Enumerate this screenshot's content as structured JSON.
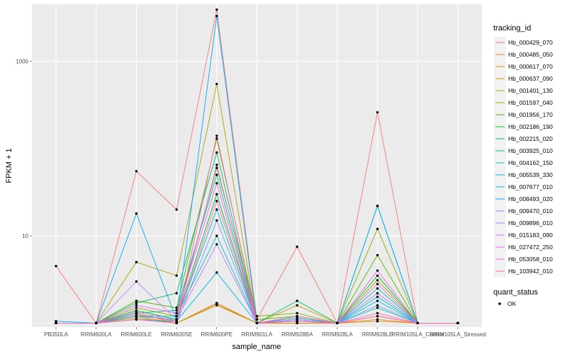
{
  "chart_data": {
    "type": "line",
    "title": "",
    "xlabel": "sample_name",
    "ylabel": "FPKM + 1",
    "y_scale": "log10",
    "ylim": [
      0.9,
      4500
    ],
    "grid": true,
    "categories": [
      "PB350LA",
      "RRIM600LA",
      "RRIM600LE",
      "RRIM600SE",
      "RRIM600PE",
      "RRIM901LA",
      "RRIM928BA",
      "RRIM928LA",
      "RRIM928LE",
      "RRIM105LA_Control",
      "RRIM105LA_Stressed"
    ],
    "y_ticks": [
      10,
      1000
    ],
    "y_tick_labels": [
      "10",
      "1000"
    ],
    "legend_title": "tracking_id",
    "legend_position": "right",
    "status_legend": {
      "title": "quant_status",
      "label": "OK",
      "color": "#000000"
    },
    "series": [
      {
        "name": "Hb_000429_070",
        "color": "#F8766D",
        "values": [
          4.5,
          1,
          55,
          20,
          3900,
          1.1,
          7.5,
          1,
          260,
          1,
          1
        ]
      },
      {
        "name": "Hb_000485_050",
        "color": "#EB8335",
        "values": [
          1,
          1,
          1.2,
          1,
          1.7,
          1,
          1,
          1,
          1.05,
          1,
          1
        ]
      },
      {
        "name": "Hb_000617_070",
        "color": "#DA8F00",
        "values": [
          1,
          1,
          1.15,
          1,
          1.6,
          1,
          1,
          1,
          1.1,
          1,
          1
        ]
      },
      {
        "name": "Hb_000637_090",
        "color": "#C49A00",
        "values": [
          1,
          1,
          1.3,
          1,
          1.65,
          1,
          1.6,
          1,
          1.2,
          1,
          1
        ]
      },
      {
        "name": "Hb_001401_130",
        "color": "#A9A400",
        "values": [
          1,
          1,
          5,
          3.5,
          550,
          1,
          1.2,
          1,
          3.1,
          1,
          1
        ]
      },
      {
        "name": "Hb_001597_040",
        "color": "#86AC00",
        "values": [
          1,
          1,
          1.5,
          1.2,
          60,
          1.2,
          1.3,
          1,
          12,
          1,
          1
        ]
      },
      {
        "name": "Hb_001956_170",
        "color": "#53B400",
        "values": [
          1,
          1,
          1.8,
          1.5,
          130,
          1.1,
          1.2,
          1,
          6,
          1,
          1
        ]
      },
      {
        "name": "Hb_002186_190",
        "color": "#00B925",
        "values": [
          1,
          1,
          1.4,
          1.1,
          30,
          1,
          1.1,
          1,
          3.5,
          1,
          1
        ]
      },
      {
        "name": "Hb_002215_020",
        "color": "#00BD64",
        "values": [
          1,
          1,
          1.7,
          2.2,
          90,
          1,
          1.8,
          1,
          22,
          1,
          1
        ]
      },
      {
        "name": "Hb_003925_010",
        "color": "#00C08B",
        "values": [
          1,
          1,
          1.3,
          1.4,
          50,
          1,
          1.15,
          1,
          2.5,
          1,
          1
        ]
      },
      {
        "name": "Hb_004162_150",
        "color": "#00C1AA",
        "values": [
          1,
          1,
          1.2,
          1.1,
          20,
          1,
          1.1,
          1,
          1.5,
          1,
          1
        ]
      },
      {
        "name": "Hb_005539_330",
        "color": "#00BFC4",
        "values": [
          1,
          1,
          1.2,
          1.2,
          10,
          1,
          1.1,
          1,
          2,
          1,
          1
        ]
      },
      {
        "name": "Hb_007677_010",
        "color": "#00B8E5",
        "values": [
          1,
          1,
          1.1,
          1.05,
          3.8,
          1,
          1.05,
          1,
          1.8,
          1,
          1
        ]
      },
      {
        "name": "Hb_008493_020",
        "color": "#00A9FF",
        "values": [
          1.05,
          1,
          18,
          1.1,
          3300,
          1,
          1.1,
          1,
          22,
          1,
          1
        ]
      },
      {
        "name": "Hb_009470_010",
        "color": "#7F96FF",
        "values": [
          1,
          1,
          1.1,
          1,
          15,
          1,
          1.05,
          1,
          1.6,
          1,
          1
        ]
      },
      {
        "name": "Hb_009896_010",
        "color": "#B883FF",
        "values": [
          1,
          1,
          3,
          1.1,
          8,
          1,
          1.05,
          1,
          2.2,
          1,
          1
        ]
      },
      {
        "name": "Hb_015183_090",
        "color": "#DB72FB",
        "values": [
          1,
          1,
          1.35,
          1.05,
          65,
          1,
          1.1,
          1,
          2.8,
          1,
          1
        ]
      },
      {
        "name": "Hb_027472_250",
        "color": "#F365E5",
        "values": [
          1,
          1,
          1.6,
          1.3,
          40,
          1,
          1.2,
          1,
          4,
          1,
          1
        ]
      },
      {
        "name": "Hb_053058_010",
        "color": "#FF61C9",
        "values": [
          1,
          1,
          1.25,
          1.05,
          25,
          1,
          1.05,
          1,
          1.3,
          1,
          1
        ]
      },
      {
        "name": "Hb_103942_010",
        "color": "#FF67A4",
        "values": [
          1,
          1,
          1.1,
          1,
          140,
          1,
          1.05,
          1,
          1.2,
          1,
          1
        ]
      }
    ]
  }
}
